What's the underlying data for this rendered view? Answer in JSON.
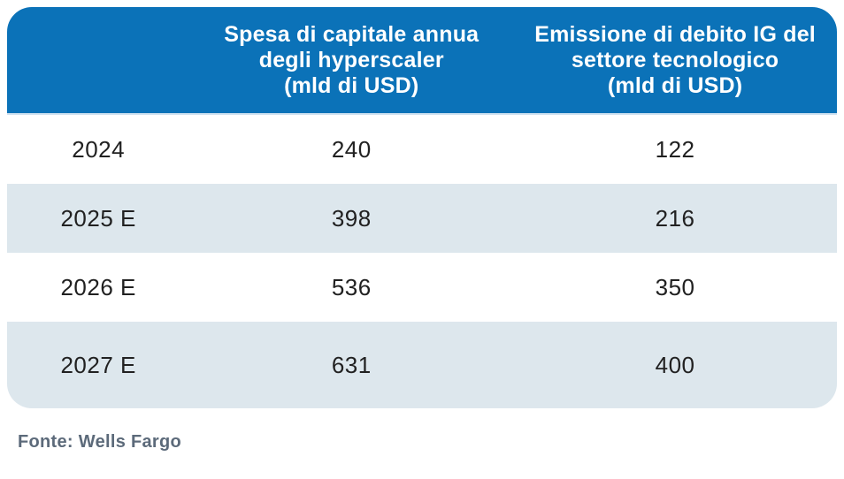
{
  "table": {
    "header": {
      "year_label": "",
      "capex_label": "Spesa di capitale annua\ndegli hyperscaler\n(mld di USD)",
      "debt_label": "Emissione di debito IG del\nsettore tecnologico\n(mld di USD)"
    },
    "rows": [
      {
        "year": "2024",
        "capex": "240",
        "debt": "122"
      },
      {
        "year": "2025 E",
        "capex": "398",
        "debt": "216"
      },
      {
        "year": "2026 E",
        "capex": "536",
        "debt": "350"
      },
      {
        "year": "2027 E",
        "capex": "631",
        "debt": "400"
      }
    ]
  },
  "footer": {
    "source": "Fonte: Wells Fargo"
  },
  "colors": {
    "header_bg": "#0B72B8",
    "header_text": "#FFFFFF",
    "row_alt_bg": "#DDE7ED",
    "row_bg": "#FFFFFF",
    "body_text": "#212121",
    "source_text": "#5C6A7A"
  },
  "chart_data": {
    "type": "table",
    "title": "",
    "categories": [
      "2024",
      "2025 E",
      "2026 E",
      "2027 E"
    ],
    "series": [
      {
        "name": "Spesa di capitale annua degli hyperscaler (mld di USD)",
        "values": [
          240,
          398,
          536,
          631
        ]
      },
      {
        "name": "Emissione di debito IG del settore tecnologico (mld di USD)",
        "values": [
          122,
          216,
          350,
          400
        ]
      }
    ],
    "source": "Fonte: Wells Fargo"
  }
}
